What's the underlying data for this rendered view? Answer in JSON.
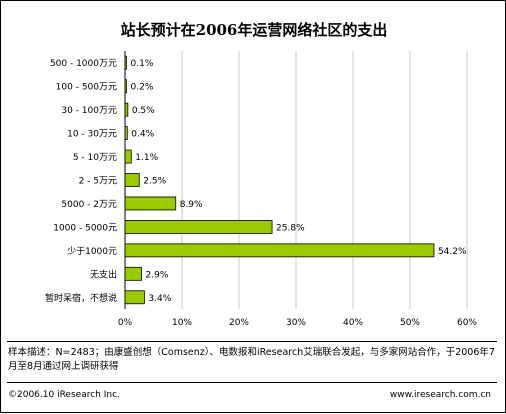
{
  "chart_data": {
    "type": "bar",
    "orientation": "horizontal",
    "title": "站长预计在2006年运营网络社区的支出",
    "categories": [
      "500 - 1000万元",
      "100 - 500万元",
      "30 - 100万元",
      "10 - 30万元",
      "5 - 10万元",
      "2 - 5万元",
      "5000 - 2万元",
      "1000 - 5000元",
      "少于1000元",
      "无支出",
      "暂时呆宿，不想说"
    ],
    "values": [
      0.1,
      0.2,
      0.5,
      0.4,
      1.1,
      2.5,
      8.9,
      25.8,
      54.2,
      2.9,
      3.4
    ],
    "value_labels": [
      "0.1%",
      "0.2%",
      "0.5%",
      "0.4%",
      "1.1%",
      "2.5%",
      "8.9%",
      "25.8%",
      "54.2%",
      "2.9%",
      "3.4%"
    ],
    "xlim": [
      0,
      60
    ],
    "x_ticks": [
      "0%",
      "10%",
      "20%",
      "30%",
      "40%",
      "50%",
      "60%"
    ],
    "grid": true,
    "bar_color": "#99cc00",
    "xlabel": "",
    "ylabel": ""
  },
  "footer": {
    "note": "样本描述：N=2483；由康盛创想（Comsenz）、电数报和iResearch艾瑞联合发起，与多家网站合作，于2006年7月至8月通过网上调研获得",
    "copyright": "©2006.10 iResearch Inc.",
    "website": "www.iresearch.com.cn"
  }
}
